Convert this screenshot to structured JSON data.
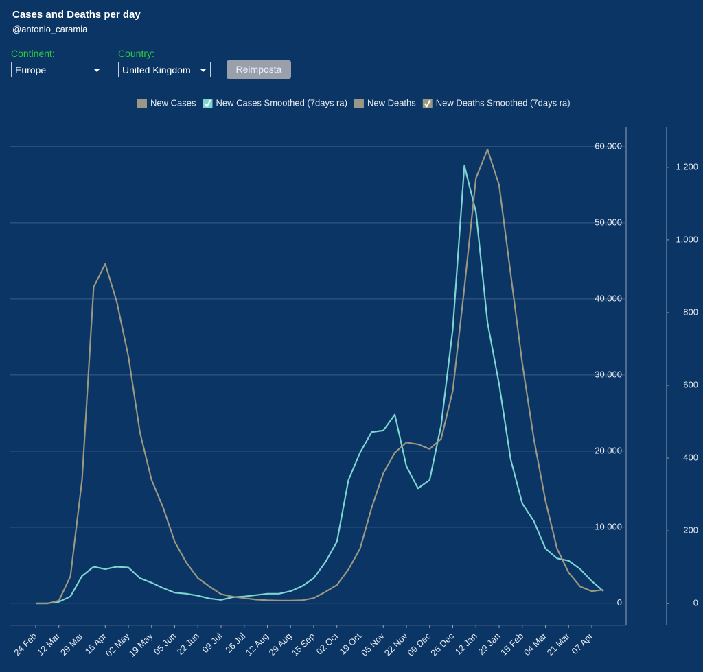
{
  "controls": {
    "continent_label": "Continent:",
    "continent": "Europe",
    "country_label": "Country:",
    "country": "United Kingdom",
    "button": "Reimposta"
  },
  "chart_data": {
    "type": "line",
    "title": "Cases and Deaths per day",
    "subtitle": "@antonio_caramia",
    "categories": [
      "24 Feb",
      null,
      "12 Mar",
      null,
      "29 Mar",
      null,
      "15 Apr",
      null,
      "02 May",
      null,
      "19 May",
      null,
      "05 Jun",
      null,
      "22 Jun",
      null,
      "09 Jul",
      null,
      "26 Jul",
      null,
      "12 Aug",
      null,
      "29 Aug",
      null,
      "15 Sep",
      null,
      "02 Oct",
      null,
      "19 Oct",
      null,
      "05 Nov",
      null,
      "22 Nov",
      null,
      "09 Dec",
      null,
      "26 Dec",
      null,
      "12 Jan",
      null,
      "29 Jan",
      null,
      "15 Feb",
      null,
      "04 Mar",
      null,
      "21 Mar",
      null,
      "07 Apr",
      null
    ],
    "series": [
      {
        "name": "New Cases",
        "color": "#9b9786",
        "checked": false
      },
      {
        "name": "New Cases Smoothed (7days ra)",
        "color": "#7dd4d0",
        "checked": true,
        "axis": "y",
        "values": [
          0,
          0,
          200,
          900,
          3600,
          4800,
          4500,
          4800,
          4700,
          3300,
          2700,
          2000,
          1400,
          1260,
          1000,
          630,
          450,
          800,
          900,
          1080,
          1260,
          1260,
          1600,
          2250,
          3300,
          5400,
          8100,
          16200,
          19800,
          22500,
          22700,
          24800,
          18000,
          15100,
          16200,
          23400,
          36000,
          57500,
          51400,
          36900,
          28800,
          18900,
          13100,
          10800,
          7200,
          5900,
          5600,
          4500,
          2900,
          1600
        ]
      },
      {
        "name": "New Deaths",
        "color": "#9b9786",
        "checked": false
      },
      {
        "name": "New Deaths Smoothed (7days ra)",
        "color": "#9a9783",
        "checked": true,
        "axis": "y2",
        "values": [
          0,
          0,
          8,
          75,
          340,
          870,
          934,
          830,
          680,
          470,
          340,
          264,
          170,
          113,
          70,
          47,
          26,
          19,
          15,
          11,
          9,
          8,
          8,
          9,
          15,
          32,
          51,
          94,
          151,
          264,
          358,
          415,
          443,
          438,
          425,
          453,
          585,
          868,
          1170,
          1249,
          1151,
          906,
          660,
          453,
          283,
          151,
          85,
          47,
          34,
          38
        ]
      }
    ],
    "ylim": [
      -2900,
      62600
    ],
    "yticks": [
      0,
      {
        "value": 10000,
        "label": "10.000"
      },
      {
        "value": 20000,
        "label": "20.000"
      },
      {
        "value": 30000,
        "label": "30.000"
      },
      {
        "value": 40000,
        "label": "40.000"
      },
      {
        "value": 50000,
        "label": "50.000"
      },
      {
        "value": 60000,
        "label": "60.000"
      }
    ],
    "y2lim": [
      -60,
      1311
    ],
    "y2ticks": [
      0,
      200,
      400,
      600,
      800,
      {
        "value": 1000,
        "label": "1.000"
      },
      {
        "value": 1200,
        "label": "1.200"
      }
    ],
    "grid": true
  }
}
